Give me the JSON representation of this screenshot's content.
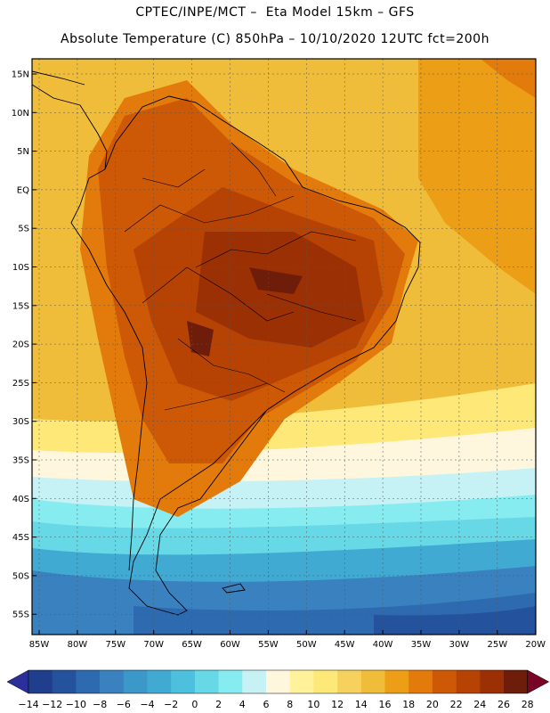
{
  "header": {
    "line1": "CPTEC/INPE/MCT –  Eta Model 15km – GFS",
    "line2": "Absolute Temperature (C) 850hPa – 10/10/2020 12UTC fct=200h"
  },
  "axes": {
    "lat_labels": [
      "15N",
      "10N",
      "5N",
      "EQ",
      "5S",
      "10S",
      "15S",
      "20S",
      "25S",
      "30S",
      "35S",
      "40S",
      "45S",
      "50S",
      "55S"
    ],
    "lon_labels": [
      "85W",
      "80W",
      "75W",
      "70W",
      "65W",
      "60W",
      "55W",
      "50W",
      "45W",
      "40W",
      "35W",
      "30W",
      "25W",
      "20W"
    ]
  },
  "colorbar": {
    "labels": [
      "-14",
      "-12",
      "-10",
      "-8",
      "-6",
      "-4",
      "-2",
      "0",
      "2",
      "4",
      "6",
      "8",
      "10",
      "12",
      "14",
      "16",
      "18",
      "20",
      "22",
      "24",
      "26",
      "28"
    ],
    "colors": [
      "#1f3e8c",
      "#24529c",
      "#2e6aaf",
      "#3a82bf",
      "#3c98c9",
      "#40aad3",
      "#4cc0dc",
      "#66d8e6",
      "#86ecf0",
      "#c6f2f6",
      "#fff6de",
      "#fff29a",
      "#fde878",
      "#f7d15e",
      "#f0bd3a",
      "#ec9e16",
      "#e27a0c",
      "#cd5806",
      "#b64304",
      "#9b3004",
      "#6e1d0b"
    ],
    "min_color": "#2a2f9a",
    "max_color": "#7a0426"
  }
}
